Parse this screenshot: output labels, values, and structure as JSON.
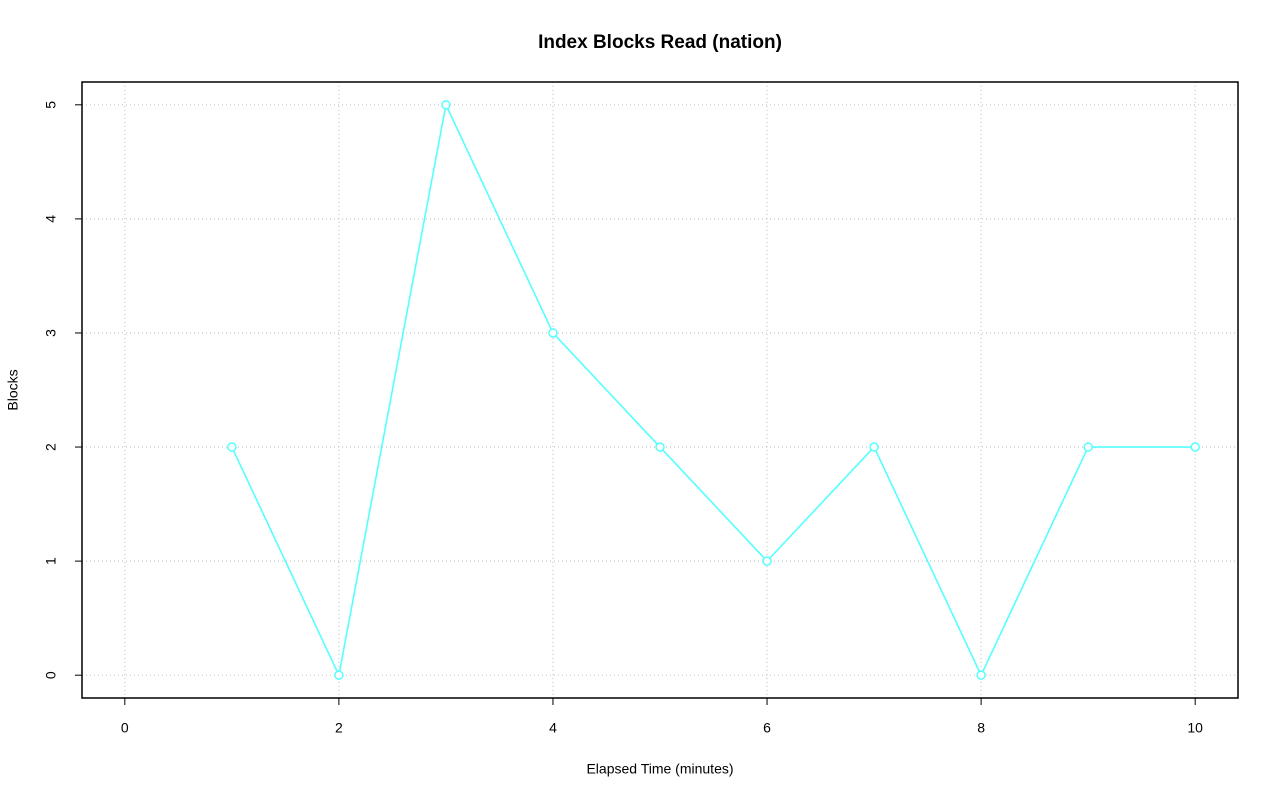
{
  "chart_data": {
    "type": "line",
    "title": "Index Blocks Read (nation)",
    "x_label": "Elapsed Time (minutes)",
    "y_label": "Blocks",
    "x": [
      1,
      2,
      3,
      4,
      5,
      6,
      7,
      8,
      9,
      10
    ],
    "values": [
      2,
      0,
      5,
      3,
      2,
      1,
      2,
      0,
      2,
      2
    ],
    "color": "#55ffff",
    "markers": true,
    "xlim": [
      -0.4,
      10.4
    ],
    "xticks": [
      0,
      2,
      4,
      6,
      8,
      10
    ],
    "ylim": [
      -0.2,
      5.2
    ],
    "yticks": [
      0,
      1,
      2,
      3,
      4,
      5
    ],
    "grid": true
  }
}
